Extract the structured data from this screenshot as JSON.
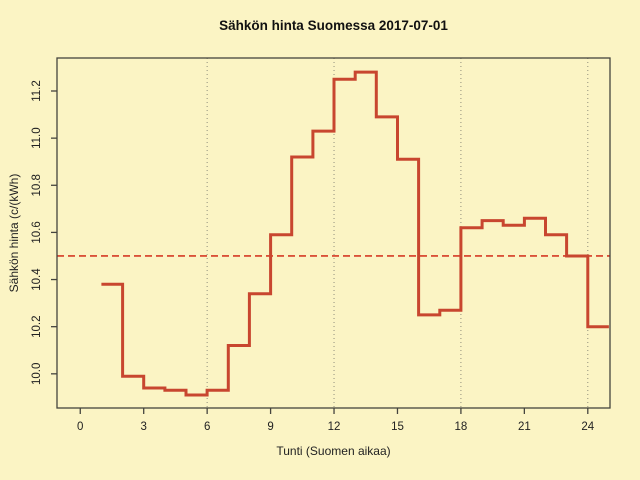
{
  "chart_data": {
    "type": "line",
    "subtype": "step",
    "title": "Sähkön hinta Suomessa 2017-07-01",
    "xlabel": "Tunti (Suomen aikaa)",
    "ylabel": "Sähkön hinta (c/(kWh)",
    "x": [
      1,
      2,
      3,
      4,
      5,
      6,
      7,
      8,
      9,
      10,
      11,
      12,
      13,
      14,
      15,
      16,
      17,
      18,
      19,
      20,
      21,
      22,
      23,
      24
    ],
    "values": [
      10.38,
      9.99,
      9.94,
      9.93,
      9.91,
      9.93,
      10.12,
      10.34,
      10.59,
      10.92,
      11.03,
      11.25,
      11.28,
      11.09,
      10.91,
      10.25,
      10.27,
      10.62,
      10.65,
      10.63,
      10.66,
      10.59,
      10.5,
      10.2
    ],
    "step_end_x": 25,
    "mean_line": {
      "value": 10.5,
      "style": "dashed"
    },
    "axes": {
      "xlim": [
        -1.1,
        25.05
      ],
      "ylim": [
        9.855,
        11.34
      ],
      "xtick_values": [
        0,
        3,
        6,
        9,
        12,
        15,
        18,
        21,
        24
      ],
      "xtick_labels": [
        "0",
        "3",
        "6",
        "9",
        "12",
        "15",
        "18",
        "21",
        "24"
      ],
      "ytick_values": [
        10.0,
        10.2,
        10.4,
        10.6,
        10.8,
        11.0,
        11.2
      ],
      "ytick_labels": [
        "10.0",
        "10.2",
        "10.4",
        "10.6",
        "10.8",
        "11.0",
        "11.2"
      ],
      "grid_x_values": [
        6,
        12,
        18,
        24
      ],
      "grid_style": "dotted",
      "legend": "none"
    },
    "colors": {
      "background": "#FBF4C4",
      "series_line": "#C8462F",
      "mean_line": "#D63A25",
      "grid_line": "#908E7C",
      "axis_box": "#45443E",
      "tick_text": "#222222",
      "title_text": "#111111"
    }
  }
}
